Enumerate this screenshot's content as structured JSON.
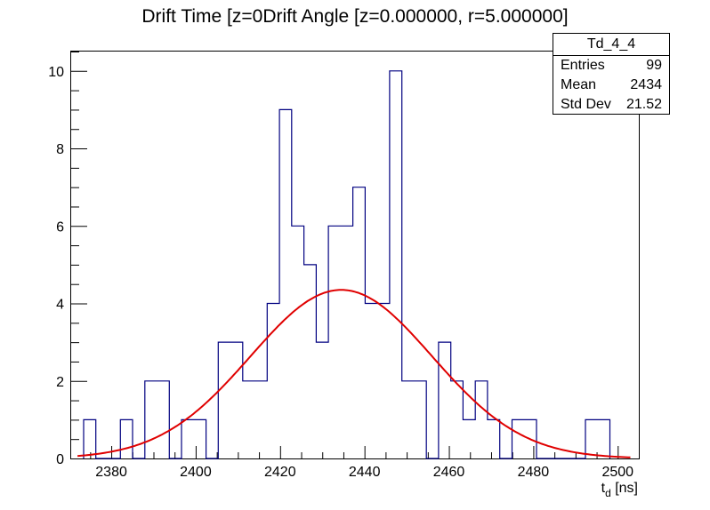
{
  "title": "Drift Time [z=0Drift Angle [z=0.000000, r=5.000000]",
  "stats": {
    "name": "Td_4_4",
    "rows": [
      {
        "label": "Entries",
        "value": "99"
      },
      {
        "label": "Mean",
        "value": "2434"
      },
      {
        "label": "Std Dev",
        "value": "21.52"
      }
    ]
  },
  "chart_data": {
    "type": "histogram",
    "title": "Drift Time [z=0Drift Angle [z=0.000000, r=5.000000]",
    "xlabel": "t_d [ns]",
    "xlabel_main": "t",
    "xlabel_sub": "d",
    "xlabel_unit": " [ns]",
    "ylabel": "",
    "xlim": [
      2370.5,
      2505
    ],
    "ylim": [
      0,
      10.5
    ],
    "x_ticks": [
      2380,
      2400,
      2420,
      2440,
      2460,
      2480,
      2500
    ],
    "y_ticks": [
      0,
      2,
      4,
      6,
      8,
      10
    ],
    "bin_width": 2.9,
    "bins": [
      {
        "x": 2374.9,
        "count": 1
      },
      {
        "x": 2377.8,
        "count": 0
      },
      {
        "x": 2380.7,
        "count": 0
      },
      {
        "x": 2383.6,
        "count": 1
      },
      {
        "x": 2386.5,
        "count": 0
      },
      {
        "x": 2389.4,
        "count": 2
      },
      {
        "x": 2392.3,
        "count": 2
      },
      {
        "x": 2395.2,
        "count": 0
      },
      {
        "x": 2398.1,
        "count": 1
      },
      {
        "x": 2401.0,
        "count": 1
      },
      {
        "x": 2403.9,
        "count": 0
      },
      {
        "x": 2406.8,
        "count": 3
      },
      {
        "x": 2409.7,
        "count": 3
      },
      {
        "x": 2412.6,
        "count": 2
      },
      {
        "x": 2415.5,
        "count": 2
      },
      {
        "x": 2418.4,
        "count": 4
      },
      {
        "x": 2421.3,
        "count": 9
      },
      {
        "x": 2424.2,
        "count": 6
      },
      {
        "x": 2427.1,
        "count": 5
      },
      {
        "x": 2430.0,
        "count": 3
      },
      {
        "x": 2432.9,
        "count": 6
      },
      {
        "x": 2435.8,
        "count": 6
      },
      {
        "x": 2438.7,
        "count": 7
      },
      {
        "x": 2441.6,
        "count": 4
      },
      {
        "x": 2444.5,
        "count": 4
      },
      {
        "x": 2447.4,
        "count": 10
      },
      {
        "x": 2450.3,
        "count": 2
      },
      {
        "x": 2453.2,
        "count": 2
      },
      {
        "x": 2456.1,
        "count": 0
      },
      {
        "x": 2459.0,
        "count": 3
      },
      {
        "x": 2461.9,
        "count": 2
      },
      {
        "x": 2464.8,
        "count": 1
      },
      {
        "x": 2467.7,
        "count": 2
      },
      {
        "x": 2470.6,
        "count": 1
      },
      {
        "x": 2473.5,
        "count": 0
      },
      {
        "x": 2476.4,
        "count": 1
      },
      {
        "x": 2479.3,
        "count": 1
      },
      {
        "x": 2482.2,
        "count": 0
      },
      {
        "x": 2485.1,
        "count": 0
      },
      {
        "x": 2488.0,
        "count": 0
      },
      {
        "x": 2490.9,
        "count": 0
      },
      {
        "x": 2493.8,
        "count": 1
      },
      {
        "x": 2496.7,
        "count": 1
      }
    ],
    "fit": {
      "type": "gaussian",
      "amplitude": 4.35,
      "mean": 2434.5,
      "sigma": 21.5
    },
    "colors": {
      "histogram": "#000080",
      "fit": "#e00000",
      "frame": "#000000"
    }
  }
}
